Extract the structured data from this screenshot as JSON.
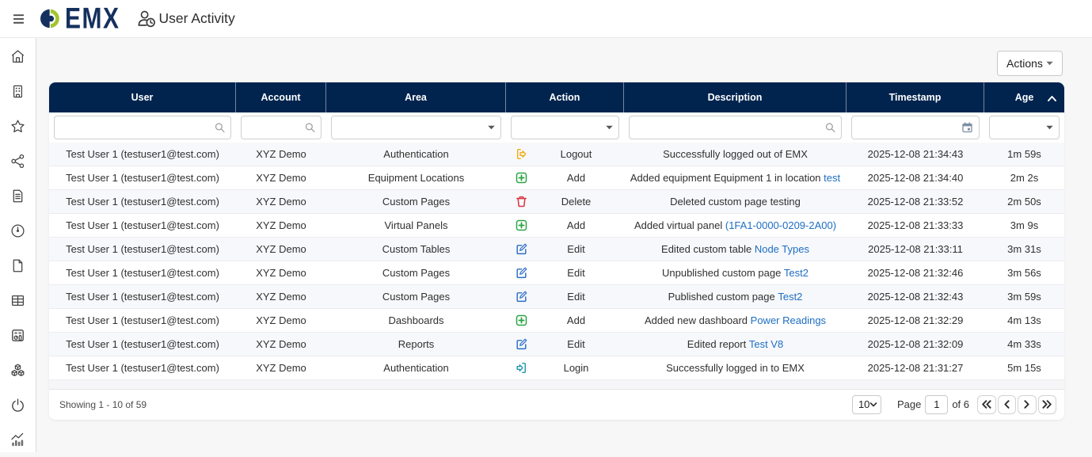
{
  "topbar": {
    "brand": "EMX",
    "title": "User Activity",
    "icons": {
      "menu": "hamburger-icon",
      "logo": "emx-logo",
      "page": "user-clock-icon"
    }
  },
  "sidebar": {
    "items": [
      {
        "name": "home",
        "icon": "home-icon"
      },
      {
        "name": "accounts",
        "icon": "building-icon"
      },
      {
        "name": "favorites",
        "icon": "star-icon"
      },
      {
        "name": "nodes",
        "icon": "share-nodes-icon"
      },
      {
        "name": "reports",
        "icon": "file-text-icon"
      },
      {
        "name": "meters",
        "icon": "gauge-icon"
      },
      {
        "name": "pages",
        "icon": "file-icon"
      },
      {
        "name": "tables",
        "icon": "table-icon"
      },
      {
        "name": "dashboards",
        "icon": "dashboard-icon"
      },
      {
        "name": "models",
        "icon": "cubes-icon"
      },
      {
        "name": "power",
        "icon": "power-icon"
      },
      {
        "name": "activity",
        "icon": "activity-chart-icon"
      }
    ]
  },
  "actions": {
    "label": "Actions",
    "icon": "caret-down-icon"
  },
  "table": {
    "columns": [
      {
        "key": "user",
        "label": "User",
        "filter": "search"
      },
      {
        "key": "account",
        "label": "Account",
        "filter": "search"
      },
      {
        "key": "area",
        "label": "Area",
        "filter": "select"
      },
      {
        "key": "action",
        "label": "Action",
        "filter": "select"
      },
      {
        "key": "description",
        "label": "Description",
        "filter": "search"
      },
      {
        "key": "timestamp",
        "label": "Timestamp",
        "filter": "date"
      },
      {
        "key": "age",
        "label": "Age",
        "filter": "select",
        "sorted": "asc"
      }
    ],
    "filter_values": {
      "user": "",
      "account": "",
      "area": "",
      "action": "",
      "description": "",
      "timestamp": "",
      "age": ""
    },
    "rows": [
      {
        "user": "Test User 1 (testuser1@test.com)",
        "account": "XYZ Demo",
        "area": "Authentication",
        "action": {
          "icon": "logout",
          "label": "Logout"
        },
        "description": {
          "text": "Successfully logged out of EMX",
          "link": ""
        },
        "timestamp": "2025-12-08 21:34:43",
        "age": "1m 59s"
      },
      {
        "user": "Test User 1 (testuser1@test.com)",
        "account": "XYZ Demo",
        "area": "Equipment Locations",
        "action": {
          "icon": "add",
          "label": "Add"
        },
        "description": {
          "text": "Added equipment Equipment 1 in location ",
          "link": "test"
        },
        "timestamp": "2025-12-08 21:34:40",
        "age": "2m 2s"
      },
      {
        "user": "Test User 1 (testuser1@test.com)",
        "account": "XYZ Demo",
        "area": "Custom Pages",
        "action": {
          "icon": "delete",
          "label": "Delete"
        },
        "description": {
          "text": "Deleted custom page testing",
          "link": ""
        },
        "timestamp": "2025-12-08 21:33:52",
        "age": "2m 50s"
      },
      {
        "user": "Test User 1 (testuser1@test.com)",
        "account": "XYZ Demo",
        "area": "Virtual Panels",
        "action": {
          "icon": "add",
          "label": "Add"
        },
        "description": {
          "text": "Added virtual panel ",
          "link": "(1FA1-0000-0209-2A00)"
        },
        "timestamp": "2025-12-08 21:33:33",
        "age": "3m 9s"
      },
      {
        "user": "Test User 1 (testuser1@test.com)",
        "account": "XYZ Demo",
        "area": "Custom Tables",
        "action": {
          "icon": "edit",
          "label": "Edit"
        },
        "description": {
          "text": "Edited custom table ",
          "link": "Node Types"
        },
        "timestamp": "2025-12-08 21:33:11",
        "age": "3m 31s"
      },
      {
        "user": "Test User 1 (testuser1@test.com)",
        "account": "XYZ Demo",
        "area": "Custom Pages",
        "action": {
          "icon": "edit",
          "label": "Edit"
        },
        "description": {
          "text": "Unpublished custom page ",
          "link": "Test2"
        },
        "timestamp": "2025-12-08 21:32:46",
        "age": "3m 56s"
      },
      {
        "user": "Test User 1 (testuser1@test.com)",
        "account": "XYZ Demo",
        "area": "Custom Pages",
        "action": {
          "icon": "edit",
          "label": "Edit"
        },
        "description": {
          "text": "Published custom page ",
          "link": "Test2"
        },
        "timestamp": "2025-12-08 21:32:43",
        "age": "3m 59s"
      },
      {
        "user": "Test User 1 (testuser1@test.com)",
        "account": "XYZ Demo",
        "area": "Dashboards",
        "action": {
          "icon": "add",
          "label": "Add"
        },
        "description": {
          "text": "Added new dashboard ",
          "link": "Power Readings"
        },
        "timestamp": "2025-12-08 21:32:29",
        "age": "4m 13s"
      },
      {
        "user": "Test User 1 (testuser1@test.com)",
        "account": "XYZ Demo",
        "area": "Reports",
        "action": {
          "icon": "edit",
          "label": "Edit"
        },
        "description": {
          "text": "Edited report ",
          "link": "Test V8"
        },
        "timestamp": "2025-12-08 21:32:09",
        "age": "4m 33s"
      },
      {
        "user": "Test User 1 (testuser1@test.com)",
        "account": "XYZ Demo",
        "area": "Authentication",
        "action": {
          "icon": "login",
          "label": "Login"
        },
        "description": {
          "text": "Successfully logged in to EMX",
          "link": ""
        },
        "timestamp": "2025-12-08 21:31:27",
        "age": "5m 15s"
      }
    ]
  },
  "footer": {
    "showing": "Showing 1 - 10 of 59",
    "page_size": "10",
    "page_label": "Page",
    "page_value": "1",
    "page_of": "of 6",
    "pager_icons": [
      "first-page-icon",
      "prev-page-icon",
      "next-page-icon",
      "last-page-icon"
    ]
  },
  "colors": {
    "header_navy": "#01244f",
    "logo_navy": "#14305e",
    "logo_green": "#a2c42d",
    "link_blue": "#1d6ec2",
    "action_add_green": "#2aa345",
    "action_delete_red": "#d8343f",
    "action_edit_blue": "#2a6ec5",
    "action_logout_amber": "#f6b21b",
    "action_login_teal": "#2b9ab0",
    "row_alt_bg": "#f7f8fb",
    "page_bg": "#f7f7f7"
  }
}
